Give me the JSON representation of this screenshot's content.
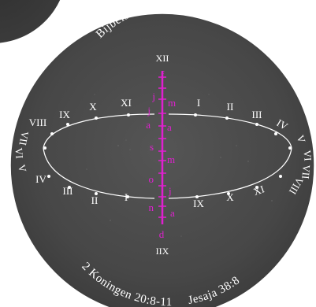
{
  "dial": {
    "title": "Bijbelse tuin Hoofddorp",
    "footer_left": "2 Koningen 20:8-11",
    "footer_right": "Jesaja 38:8",
    "top_label": "XII",
    "bottom_label": "IIX",
    "left_hours": [
      "I",
      "II",
      "III",
      "IV",
      "V",
      "VI",
      "VII",
      "VIII",
      "IX",
      "X",
      "XI"
    ],
    "right_hours": [
      "I",
      "II",
      "III",
      "IV",
      "V",
      "VI",
      "VII",
      "VIII",
      "IX",
      "X",
      "XI"
    ],
    "month_letters_left": [
      "j",
      "j",
      "a",
      "s",
      "o",
      "n"
    ],
    "month_letters_right": [
      "f",
      "m",
      "a",
      "m",
      "j",
      "a",
      "s",
      "o",
      "n",
      "d"
    ],
    "gnomon_bottom_label": "d",
    "colors": {
      "dial": "#4a4a4a",
      "dial_outer": "#3e3e3e",
      "ring": "#ffffff",
      "marks": "#e020d0"
    }
  }
}
